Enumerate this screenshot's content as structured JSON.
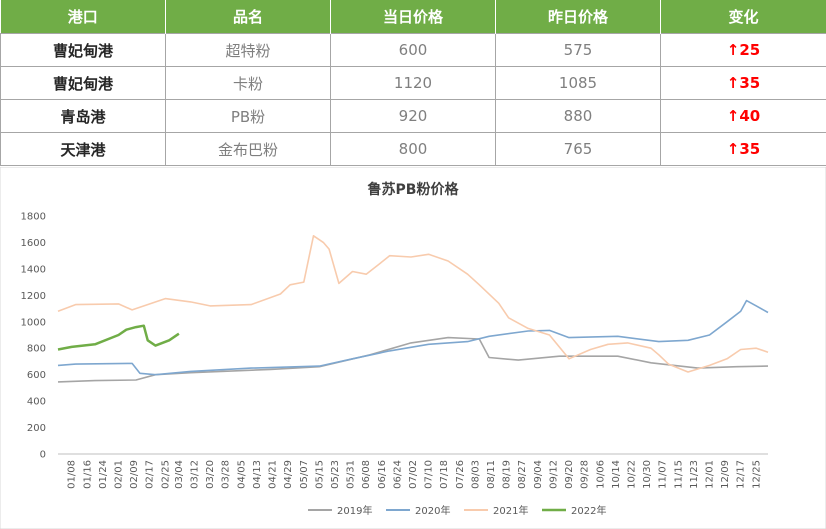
{
  "table": {
    "headers": [
      "港口",
      "品名",
      "当日价格",
      "昨日价格",
      "变化"
    ],
    "rows": [
      {
        "port": "曹妃甸港",
        "product": "超特粉",
        "today": "600",
        "yesterday": "575",
        "change": "↑25"
      },
      {
        "port": "曹妃甸港",
        "product": "卡粉",
        "today": "1120",
        "yesterday": "1085",
        "change": "↑35"
      },
      {
        "port": "青岛港",
        "product": "PB粉",
        "today": "920",
        "yesterday": "880",
        "change": "↑40"
      },
      {
        "port": "天津港",
        "product": "金布巴粉",
        "today": "800",
        "yesterday": "765",
        "change": "↑35"
      }
    ]
  },
  "colors": {
    "header_bg": "#70ad47",
    "up": "#ff0000",
    "s2019": "#a5a5a5",
    "s2020": "#7ea7cf",
    "s2021": "#f8cbad",
    "s2022": "#70ad47"
  },
  "chart_data": {
    "type": "line",
    "title": "鲁苏PB粉价格",
    "ylim": [
      0,
      1800
    ],
    "yticks": [
      0,
      200,
      400,
      600,
      800,
      1000,
      1200,
      1400,
      1600,
      1800
    ],
    "x_day_range": [
      1,
      365
    ],
    "xticks": [
      "01/08",
      "01/16",
      "01/24",
      "02/01",
      "02/09",
      "02/17",
      "02/25",
      "03/04",
      "03/12",
      "03/20",
      "03/28",
      "04/05",
      "04/13",
      "04/21",
      "04/29",
      "05/07",
      "05/15",
      "05/23",
      "05/31",
      "06/08",
      "06/16",
      "06/24",
      "07/02",
      "07/10",
      "07/18",
      "07/26",
      "08/03",
      "08/11",
      "08/19",
      "08/27",
      "09/04",
      "09/12",
      "09/20",
      "09/28",
      "10/06",
      "10/14",
      "10/22",
      "10/30",
      "11/07",
      "11/15",
      "11/23",
      "12/01",
      "12/09",
      "12/17",
      "12/25"
    ],
    "grid": false,
    "legend": "bottom",
    "series": [
      {
        "name": "2019年",
        "color": "#a5a5a5",
        "points": [
          [
            "01/01",
            545
          ],
          [
            "01/20",
            555
          ],
          [
            "02/10",
            560
          ],
          [
            "02/20",
            600
          ],
          [
            "03/10",
            615
          ],
          [
            "04/20",
            640
          ],
          [
            "05/15",
            660
          ],
          [
            "06/10",
            750
          ],
          [
            "07/01",
            840
          ],
          [
            "07/20",
            880
          ],
          [
            "08/05",
            870
          ],
          [
            "08/10",
            730
          ],
          [
            "08/25",
            710
          ],
          [
            "09/15",
            740
          ],
          [
            "10/15",
            740
          ],
          [
            "11/01",
            690
          ],
          [
            "11/25",
            650
          ],
          [
            "12/15",
            660
          ],
          [
            "12/31",
            665
          ]
        ]
      },
      {
        "name": "2020年",
        "color": "#7ea7cf",
        "points": [
          [
            "01/01",
            670
          ],
          [
            "01/10",
            680
          ],
          [
            "02/08",
            685
          ],
          [
            "02/12",
            610
          ],
          [
            "02/20",
            600
          ],
          [
            "03/10",
            625
          ],
          [
            "04/10",
            650
          ],
          [
            "05/15",
            665
          ],
          [
            "06/01",
            720
          ],
          [
            "06/20",
            780
          ],
          [
            "07/10",
            830
          ],
          [
            "07/30",
            850
          ],
          [
            "08/10",
            890
          ],
          [
            "08/30",
            930
          ],
          [
            "09/10",
            935
          ],
          [
            "09/20",
            880
          ],
          [
            "10/15",
            890
          ],
          [
            "11/05",
            850
          ],
          [
            "11/20",
            860
          ],
          [
            "12/01",
            900
          ],
          [
            "12/10",
            1000
          ],
          [
            "12/17",
            1080
          ],
          [
            "12/20",
            1160
          ],
          [
            "12/25",
            1120
          ],
          [
            "12/31",
            1070
          ]
        ]
      },
      {
        "name": "2021年",
        "color": "#f8cbad",
        "points": [
          [
            "01/01",
            1080
          ],
          [
            "01/10",
            1130
          ],
          [
            "02/01",
            1135
          ],
          [
            "02/08",
            1090
          ],
          [
            "02/25",
            1175
          ],
          [
            "03/10",
            1150
          ],
          [
            "03/20",
            1120
          ],
          [
            "04/10",
            1130
          ],
          [
            "04/25",
            1210
          ],
          [
            "04/30",
            1280
          ],
          [
            "05/07",
            1300
          ],
          [
            "05/10",
            1510
          ],
          [
            "05/12",
            1650
          ],
          [
            "05/17",
            1600
          ],
          [
            "05/20",
            1550
          ],
          [
            "05/25",
            1290
          ],
          [
            "06/01",
            1380
          ],
          [
            "06/08",
            1360
          ],
          [
            "06/15",
            1440
          ],
          [
            "06/20",
            1500
          ],
          [
            "07/01",
            1490
          ],
          [
            "07/10",
            1510
          ],
          [
            "07/20",
            1460
          ],
          [
            "07/30",
            1360
          ],
          [
            "08/05",
            1280
          ],
          [
            "08/15",
            1140
          ],
          [
            "08/20",
            1030
          ],
          [
            "08/30",
            950
          ],
          [
            "09/10",
            900
          ],
          [
            "09/20",
            720
          ],
          [
            "10/01",
            790
          ],
          [
            "10/10",
            830
          ],
          [
            "10/20",
            840
          ],
          [
            "11/01",
            800
          ],
          [
            "11/05",
            750
          ],
          [
            "11/10",
            680
          ],
          [
            "11/20",
            620
          ],
          [
            "12/01",
            670
          ],
          [
            "12/10",
            720
          ],
          [
            "12/17",
            790
          ],
          [
            "12/25",
            800
          ],
          [
            "12/31",
            770
          ]
        ]
      },
      {
        "name": "2022年",
        "color": "#70ad47",
        "points": [
          [
            "01/01",
            790
          ],
          [
            "01/08",
            810
          ],
          [
            "01/20",
            830
          ],
          [
            "02/01",
            900
          ],
          [
            "02/05",
            940
          ],
          [
            "02/10",
            960
          ],
          [
            "02/14",
            970
          ],
          [
            "02/16",
            860
          ],
          [
            "02/20",
            820
          ],
          [
            "02/27",
            860
          ],
          [
            "03/04",
            910
          ]
        ]
      }
    ]
  }
}
